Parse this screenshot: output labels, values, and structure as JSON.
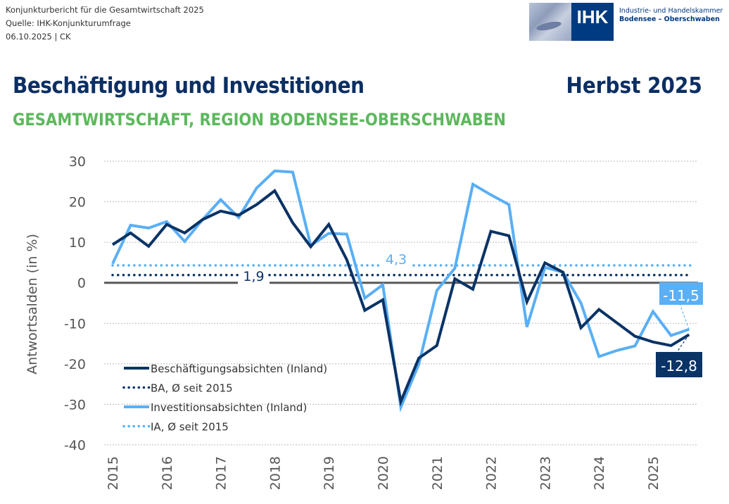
{
  "meta": {
    "line1": "Konjunkturbericht für die Gesamtwirtschaft 2025",
    "line2": "Quelle: IHK-Konjunkturumfrage",
    "line3": "06.10.2025 | CK"
  },
  "logo": {
    "mark": "IHK",
    "line1": "Industrie- und Handelskammer",
    "line2": "Bodensee – Oberschwaben"
  },
  "header": {
    "title": "Beschäftigung und Investitionen",
    "season": "Herbst 2025",
    "subtitle": "GESAMTWIRTSCHAFT, REGION BODENSEE-OBERSCHWABEN"
  },
  "colors": {
    "dark": "#0a3366",
    "light": "#5aaff5",
    "title": "#0b2f63",
    "subtitle": "#5cb85c",
    "grid": "#bbbbbb",
    "zero": "#595959"
  },
  "chart_data": {
    "type": "line",
    "title": "Beschäftigung und Investitionen",
    "xlabel": "",
    "ylabel": "Antwortsalden (in %)",
    "ylim": [
      -40,
      30
    ],
    "yticks": [
      30,
      20,
      10,
      0,
      -10,
      -20,
      -30,
      -40
    ],
    "xticks": [
      "2015",
      "2016",
      "2017",
      "2018",
      "2019",
      "2020",
      "2021",
      "2022",
      "2023",
      "2024",
      "2025"
    ],
    "points_per_year": 3,
    "grid": true,
    "legend_position": "bottom-left",
    "series": [
      {
        "name": "Beschäftigungsabsichten (Inland)",
        "style": "solid",
        "color": "dark",
        "values": [
          9.4,
          12.3,
          9.0,
          14.4,
          12.3,
          15.6,
          17.7,
          16.7,
          19.3,
          22.7,
          14.8,
          8.9,
          14.4,
          5.7,
          -6.8,
          -4.2,
          -29.3,
          -18.6,
          -15.5,
          1.0,
          -1.6,
          12.7,
          11.6,
          -4.7,
          4.9,
          2.6,
          -11.1,
          -6.6,
          -9.9,
          -13.2,
          -14.6,
          -15.5,
          -12.8
        ]
      },
      {
        "name": "BA, Ø seit 2015",
        "style": "dotted",
        "color": "dark",
        "constant": 1.9,
        "label": "1,9"
      },
      {
        "name": "Investitionsabsichten (Inland)",
        "style": "solid",
        "color": "light",
        "values": [
          4.7,
          14.2,
          13.5,
          15.1,
          10.2,
          15.6,
          20.5,
          16.1,
          23.4,
          27.6,
          27.3,
          9.2,
          12.2,
          12.0,
          -3.8,
          -0.5,
          -30.7,
          -20.1,
          -1.9,
          3.6,
          24.3,
          21.7,
          19.3,
          -10.9,
          3.8,
          2.6,
          -5.0,
          -18.2,
          -16.7,
          -15.6,
          -7.1,
          -13.0,
          -11.5
        ]
      },
      {
        "name": "IA, Ø seit 2015",
        "style": "dotted",
        "color": "light",
        "constant": 4.3,
        "label": "4,3"
      }
    ],
    "end_labels": {
      "light": "-11,5",
      "dark": "-12,8"
    }
  }
}
